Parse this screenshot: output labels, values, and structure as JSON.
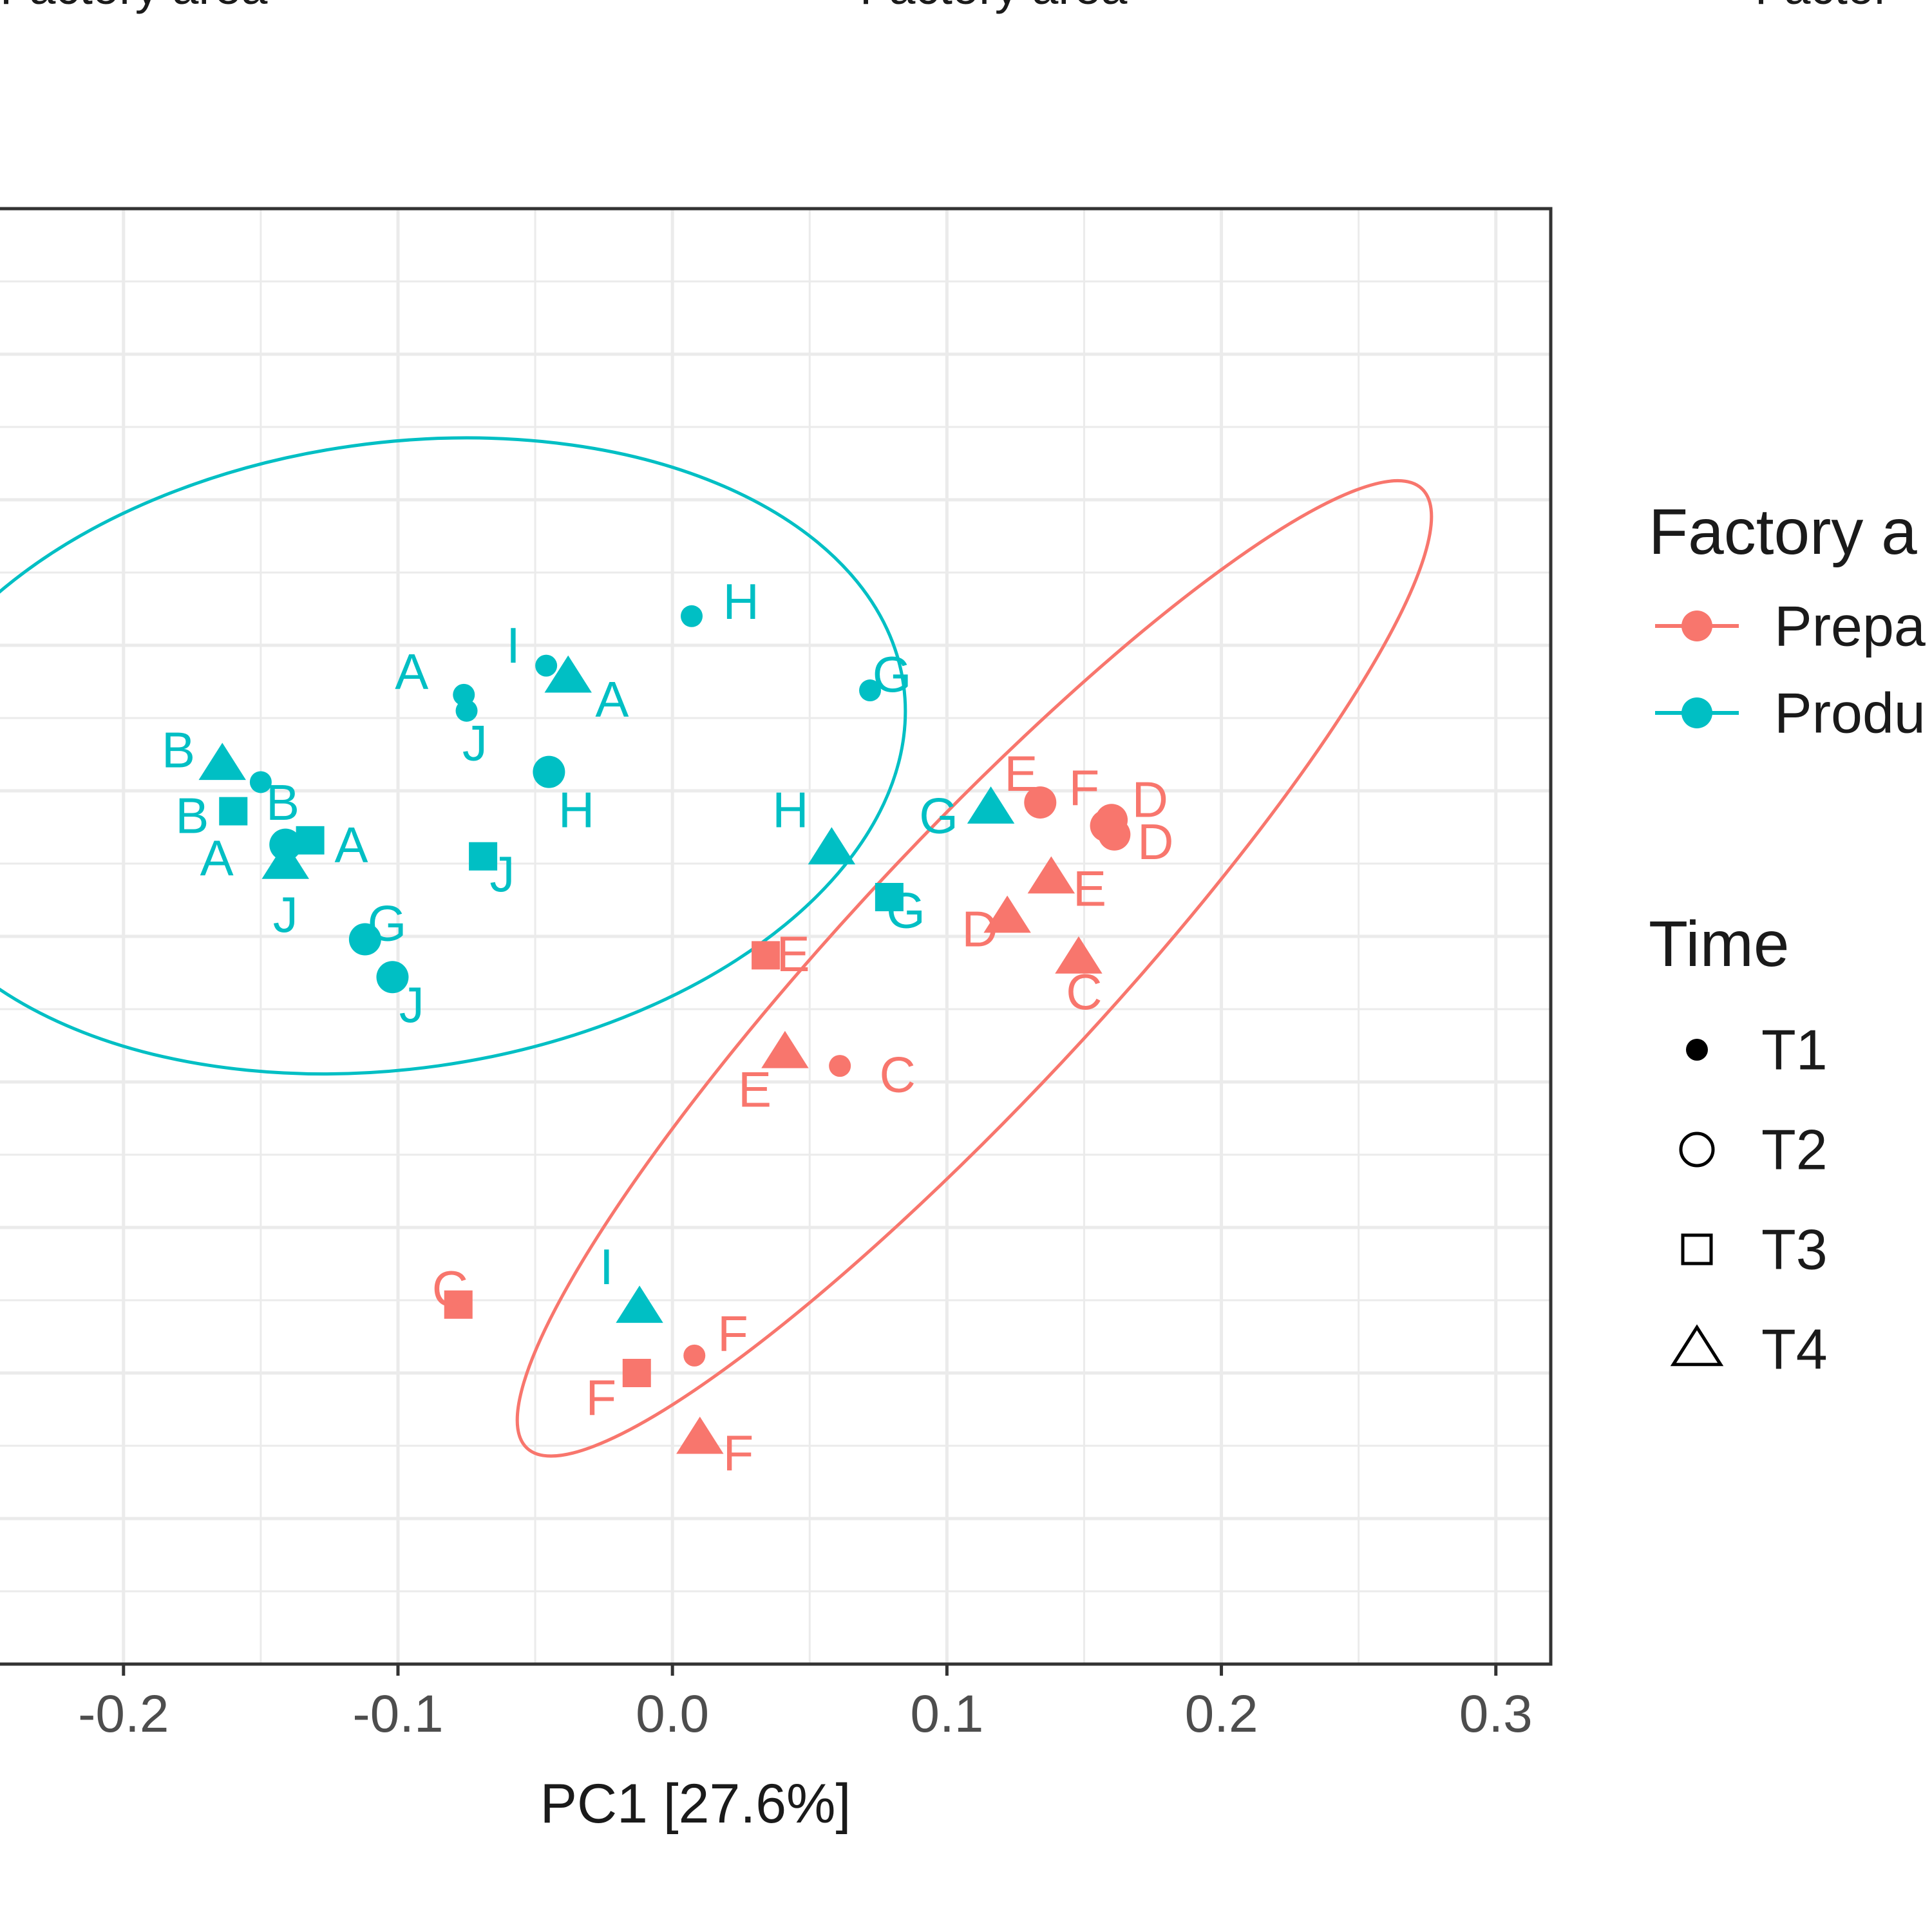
{
  "facet_titles": [
    "Factory area",
    "Factory area",
    "Factor"
  ],
  "chart_data": {
    "type": "scatter",
    "title": "",
    "xlabel": "PC1 [27.6%]",
    "ylabel": "",
    "xlim": [
      -0.245,
      0.32
    ],
    "ylim": [
      0,
      10
    ],
    "x_ticks": [
      -0.2,
      -0.1,
      0.0,
      0.1,
      0.2,
      0.3
    ],
    "x_tick_labels": [
      "-0.2",
      "-0.1",
      "0.0",
      "0.1",
      "0.2",
      "0.3"
    ],
    "grid": true,
    "legend_position": "right",
    "legend": {
      "color_title": "Factory a",
      "shape_title": "Time",
      "groups": [
        {
          "name": "Prepa",
          "color": "#F8766D"
        },
        {
          "name": "Produ",
          "color": "#00BFC4"
        }
      ],
      "times": [
        {
          "name": "T1",
          "shape": "small-circle"
        },
        {
          "name": "T2",
          "shape": "circle"
        },
        {
          "name": "T3",
          "shape": "square"
        },
        {
          "name": "T4",
          "shape": "triangle"
        }
      ]
    },
    "ellipses": [
      {
        "group": "Produ",
        "color": "#00BFC4",
        "cx": -0.101,
        "cy": 6.24,
        "rx": 0.187,
        "ry": 2.15,
        "angle_deg": -8
      },
      {
        "group": "Prepa",
        "color": "#F8766D",
        "cx": 0.11,
        "cy": 4.78,
        "rx": 0.239,
        "ry": 0.88,
        "angle_deg": -47
      }
    ],
    "points": [
      {
        "group": "Produ",
        "time": "T1",
        "label": "H",
        "x": 0.007,
        "y": 7.2,
        "lx": 0.025,
        "ly": 7.3
      },
      {
        "group": "Produ",
        "time": "T1",
        "label": "I",
        "x": -0.046,
        "y": 6.86,
        "lx": -0.058,
        "ly": 7.0
      },
      {
        "group": "Produ",
        "time": "T1",
        "label": "G",
        "x": 0.072,
        "y": 6.69,
        "lx": 0.08,
        "ly": 6.8
      },
      {
        "group": "Produ",
        "time": "T1",
        "label": "A",
        "x": -0.076,
        "y": 6.66,
        "lx": -0.095,
        "ly": 6.82
      },
      {
        "group": "Produ",
        "time": "T1",
        "label": "J",
        "x": -0.075,
        "y": 6.55,
        "lx": -0.072,
        "ly": 6.33
      },
      {
        "group": "Produ",
        "time": "T1",
        "label": "B",
        "x": -0.15,
        "y": 6.06,
        "lx": -0.142,
        "ly": 5.92
      },
      {
        "group": "Produ",
        "time": "T2",
        "label": "H",
        "x": -0.045,
        "y": 6.13,
        "lx": -0.035,
        "ly": 5.87
      },
      {
        "group": "Produ",
        "time": "T2",
        "label": "A",
        "x": -0.141,
        "y": 5.63,
        "lx": -0.166,
        "ly": 5.54
      },
      {
        "group": "Produ",
        "time": "T2",
        "label": "G",
        "x": -0.112,
        "y": 4.98,
        "lx": -0.104,
        "ly": 5.09
      },
      {
        "group": "Produ",
        "time": "T2",
        "label": "J",
        "x": -0.102,
        "y": 4.72,
        "lx": -0.095,
        "ly": 4.53
      },
      {
        "group": "Produ",
        "time": "T3",
        "label": "B",
        "x": -0.16,
        "y": 5.86,
        "lx": -0.175,
        "ly": 5.83
      },
      {
        "group": "Produ",
        "time": "T3",
        "label": "A",
        "x": -0.132,
        "y": 5.66,
        "lx": -0.117,
        "ly": 5.63
      },
      {
        "group": "Produ",
        "time": "T3",
        "label": "J",
        "x": -0.069,
        "y": 5.55,
        "lx": -0.062,
        "ly": 5.43
      },
      {
        "group": "Produ",
        "time": "T3",
        "label": "G",
        "x": 0.079,
        "y": 5.27,
        "lx": 0.085,
        "ly": 5.18
      },
      {
        "group": "Produ",
        "time": "T4",
        "label": "B",
        "x": -0.164,
        "y": 6.18,
        "lx": -0.18,
        "ly": 6.28
      },
      {
        "group": "Produ",
        "time": "T4",
        "label": "A",
        "x": -0.038,
        "y": 6.78,
        "lx": -0.022,
        "ly": 6.63
      },
      {
        "group": "Produ",
        "time": "T4",
        "label": "J",
        "x": -0.141,
        "y": 5.5,
        "lx": -0.141,
        "ly": 5.15
      },
      {
        "group": "Produ",
        "time": "T4",
        "label": "H",
        "x": 0.058,
        "y": 5.6,
        "lx": 0.043,
        "ly": 5.87
      },
      {
        "group": "Produ",
        "time": "T4",
        "label": "G",
        "x": 0.116,
        "y": 5.88,
        "lx": 0.097,
        "ly": 5.83
      },
      {
        "group": "Produ",
        "time": "T4",
        "label": "I",
        "x": -0.012,
        "y": 2.45,
        "lx": -0.024,
        "ly": 2.73
      },
      {
        "group": "Prepa",
        "time": "T1",
        "label": "C",
        "x": 0.061,
        "y": 4.11,
        "lx": 0.082,
        "ly": 4.05
      },
      {
        "group": "Prepa",
        "time": "T1",
        "label": "F",
        "x": 0.008,
        "y": 2.12,
        "lx": 0.022,
        "ly": 2.27
      },
      {
        "group": "Prepa",
        "time": "T2",
        "label": "E",
        "x": 0.134,
        "y": 5.92,
        "lx": 0.127,
        "ly": 6.12
      },
      {
        "group": "Prepa",
        "time": "T2",
        "label": "D",
        "x": 0.16,
        "y": 5.8,
        "lx": 0.174,
        "ly": 5.94
      },
      {
        "group": "Prepa",
        "time": "T2",
        "label": "D",
        "x": 0.161,
        "y": 5.7,
        "lx": 0.176,
        "ly": 5.65
      },
      {
        "group": "Prepa",
        "time": "T2",
        "label": "F",
        "x": 0.158,
        "y": 5.76,
        "lx": 0.15,
        "ly": 6.02
      },
      {
        "group": "Prepa",
        "time": "T3",
        "label": "E",
        "x": 0.034,
        "y": 4.87,
        "lx": 0.044,
        "ly": 4.88
      },
      {
        "group": "Prepa",
        "time": "T3",
        "label": "C",
        "x": -0.078,
        "y": 2.47,
        "lx": -0.081,
        "ly": 2.58
      },
      {
        "group": "Prepa",
        "time": "T3",
        "label": "F",
        "x": -0.013,
        "y": 2.0,
        "lx": -0.026,
        "ly": 1.83
      },
      {
        "group": "Prepa",
        "time": "T4",
        "label": "E",
        "x": 0.138,
        "y": 5.4,
        "lx": 0.152,
        "ly": 5.33
      },
      {
        "group": "Prepa",
        "time": "T4",
        "label": "D",
        "x": 0.122,
        "y": 5.13,
        "lx": 0.112,
        "ly": 5.05
      },
      {
        "group": "Prepa",
        "time": "T4",
        "label": "C",
        "x": 0.148,
        "y": 4.85,
        "lx": 0.15,
        "ly": 4.62
      },
      {
        "group": "Prepa",
        "time": "T4",
        "label": "E",
        "x": 0.041,
        "y": 4.2,
        "lx": 0.03,
        "ly": 3.95
      },
      {
        "group": "Prepa",
        "time": "T4",
        "label": "F",
        "x": 0.01,
        "y": 1.55,
        "lx": 0.024,
        "ly": 1.45
      }
    ]
  }
}
